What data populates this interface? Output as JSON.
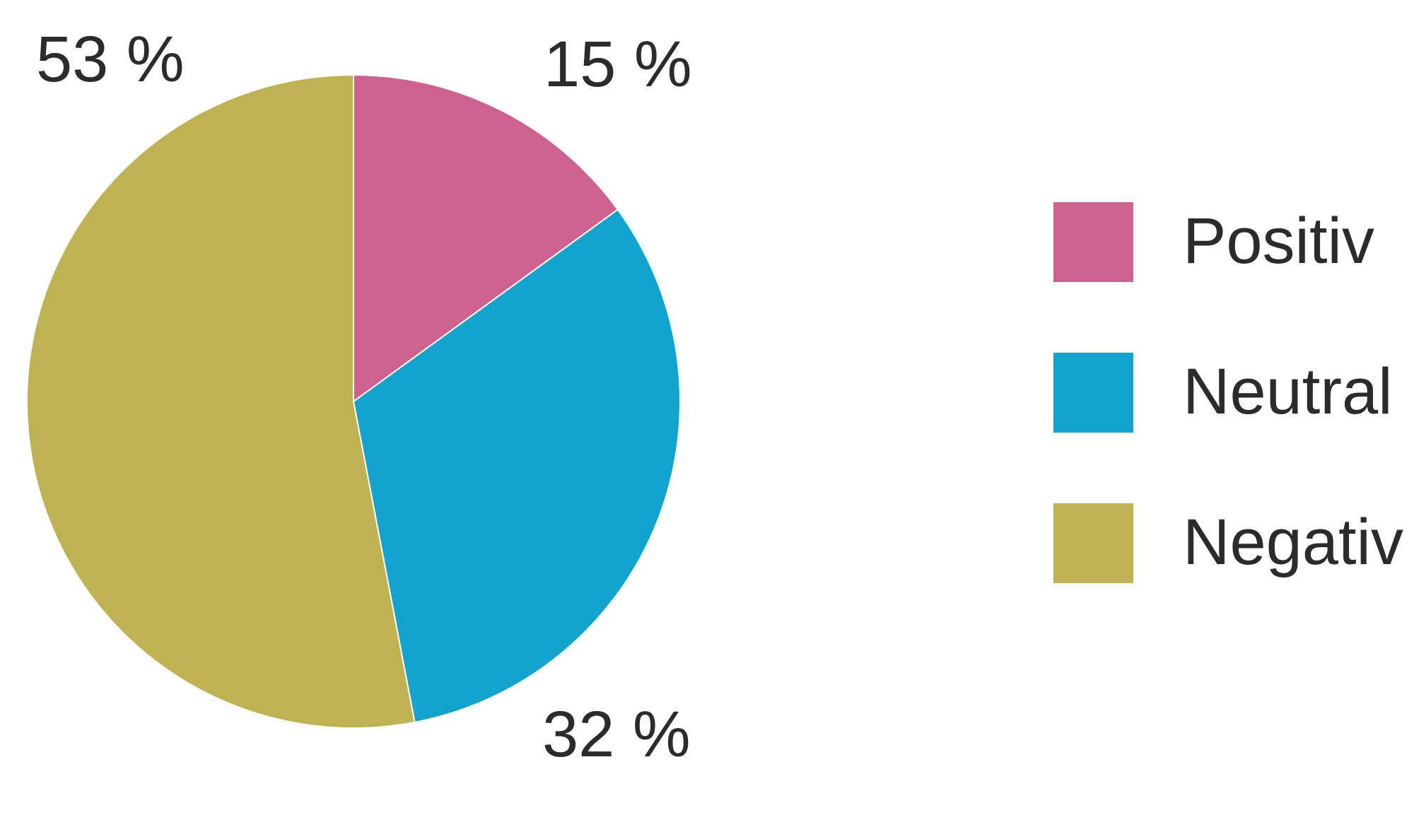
{
  "chart_data": {
    "type": "pie",
    "title": "",
    "slices": [
      {
        "label": "Positiv",
        "value": 15,
        "display": "15 %",
        "color": "#CD6190"
      },
      {
        "label": "Neutral",
        "value": 32,
        "display": "32 %",
        "color": "#12A4CF"
      },
      {
        "label": "Negativ",
        "value": 53,
        "display": "53 %",
        "color": "#BFB250"
      }
    ],
    "start_angle": "top (12 o'clock), clockwise",
    "legend_placement": "right"
  }
}
